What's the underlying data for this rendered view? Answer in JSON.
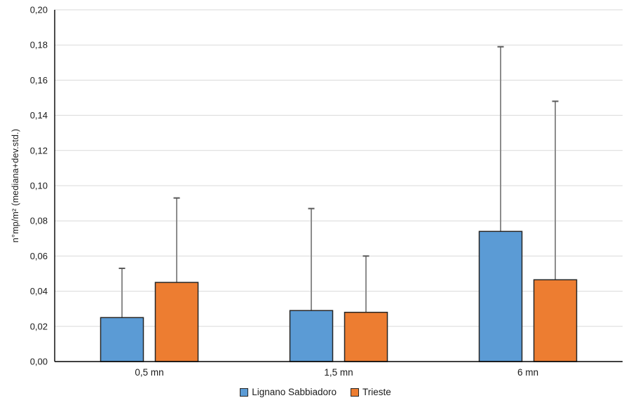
{
  "chart_data": {
    "type": "bar",
    "title": "",
    "xlabel": "",
    "ylabel": "n°mp/m² (mediana+dev.std.)",
    "categories": [
      "0,5 mn",
      "1,5 mn",
      "6 mn"
    ],
    "series": [
      {
        "name": "Lignano Sabbiadoro",
        "color": "#5B9BD5",
        "values": [
          0.025,
          0.029,
          0.074
        ],
        "error_top": [
          0.053,
          0.087,
          0.179
        ]
      },
      {
        "name": "Trieste",
        "color": "#ED7D31",
        "values": [
          0.045,
          0.028,
          0.0465
        ],
        "error_top": [
          0.093,
          0.06,
          0.148
        ]
      }
    ],
    "ylim": [
      0,
      0.2
    ],
    "y_tick_step": 0.02,
    "y_tick_labels": [
      "0,00",
      "0,02",
      "0,04",
      "0,06",
      "0,08",
      "0,10",
      "0,12",
      "0,14",
      "0,16",
      "0,18",
      "0,20"
    ],
    "grid": true,
    "legend_position": "bottom",
    "colors": {
      "gridline": "#D9D9D9",
      "axis": "#000000",
      "bar_border": "#262626",
      "error_line": "#8C8C8C",
      "error_cap": "#595959",
      "text": "#1A1A1A",
      "background": "#FFFFFF"
    }
  }
}
